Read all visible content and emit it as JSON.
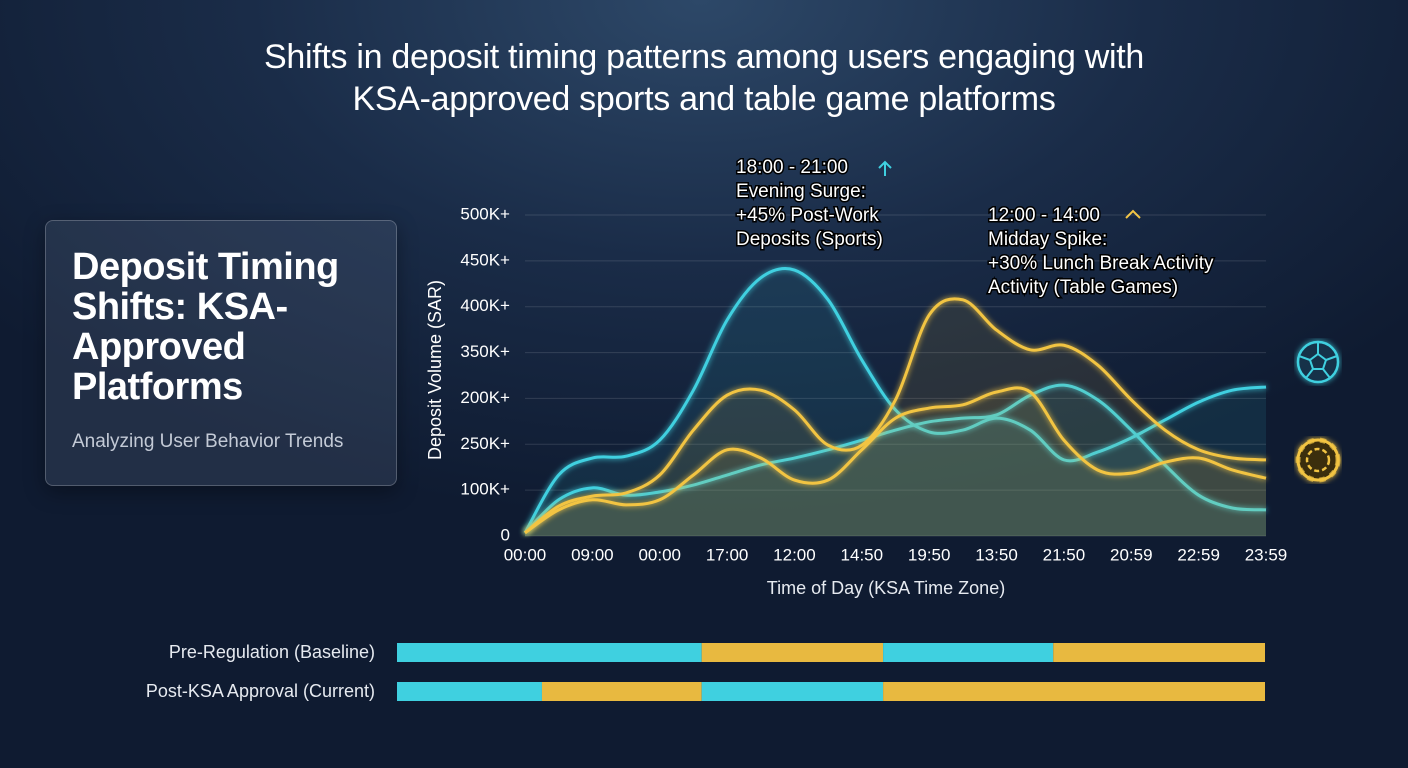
{
  "chart_data": {
    "type": "line",
    "title": "Shifts in deposit timing patterns among users engaging with KSA-approved sports and table game platforms",
    "x_label": "Time of Day (KSA Time Zone)",
    "y_label": "Deposit Volume (SAR)",
    "categories": [
      "00:00",
      null,
      "09:00",
      null,
      "00:00",
      null,
      "17:00",
      null,
      "12:00",
      null,
      "14:50",
      null,
      "19:50",
      null,
      "13:50",
      null,
      "21:50",
      null,
      "20:59",
      null,
      "22:59",
      null,
      "23:59"
    ],
    "ylim": [
      0,
      7
    ],
    "yticks": [
      {
        "value": 0,
        "label": "0"
      },
      {
        "value": 1,
        "label": "100K+"
      },
      {
        "value": 2,
        "label": "250K+"
      },
      {
        "value": 3,
        "label": "200K+"
      },
      {
        "value": 4,
        "label": "350K+"
      },
      {
        "value": 5,
        "label": "400K+"
      },
      {
        "value": 6,
        "label": "450K+"
      },
      {
        "value": 7,
        "label": "500K+"
      }
    ],
    "grid": true,
    "series": [
      {
        "color": "#3fd0e0",
        "values": [
          0.07,
          1.33,
          1.7,
          1.74,
          2.09,
          3.18,
          4.71,
          5.63,
          5.8,
          5.15,
          3.84,
          2.75,
          2.27,
          2.31,
          2.57,
          2.31,
          1.66,
          1.83,
          2.14,
          2.53,
          2.92,
          3.18,
          3.25
        ]
      },
      {
        "color": "#3fd0e0",
        "values": [
          0.07,
          0.79,
          1.05,
          0.89,
          0.96,
          1.11,
          1.33,
          1.55,
          1.7,
          1.88,
          2.09,
          2.31,
          2.49,
          2.57,
          2.64,
          3.07,
          3.29,
          2.97,
          2.31,
          1.55,
          0.89,
          0.61,
          0.57
        ]
      },
      {
        "color": "#f2c443",
        "values": [
          0.07,
          0.65,
          0.87,
          0.94,
          1.33,
          2.31,
          3.07,
          3.18,
          2.75,
          1.98,
          1.98,
          2.97,
          4.82,
          5.15,
          4.49,
          4.06,
          4.16,
          3.73,
          2.97,
          2.31,
          1.88,
          1.7,
          1.66
        ]
      },
      {
        "color": "#f2c443",
        "values": [
          0.07,
          0.57,
          0.79,
          0.68,
          0.79,
          1.33,
          1.88,
          1.7,
          1.22,
          1.22,
          1.88,
          2.57,
          2.79,
          2.86,
          3.14,
          3.14,
          2.09,
          1.44,
          1.37,
          1.61,
          1.7,
          1.44,
          1.26
        ]
      }
    ],
    "annotations": [
      {
        "lines": [
          "18:00 - 21:00",
          "Evening Surge:",
          "+45% Post-Work",
          "Deposits (Sports)"
        ]
      },
      {
        "lines": [
          "12:00 - 14:00",
          "Midday Spike:",
          "+30% Lunch Break Activity",
          "Activity (Table Games)"
        ]
      }
    ]
  },
  "card": {
    "title": "Deposit Timing Shifts: KSA-Approved Platforms",
    "subtitle": "Analyzing User Behavior Trends"
  },
  "timeline": {
    "rows": [
      {
        "label": "Pre-Regulation (Baseline)",
        "segments": [
          {
            "color": "#3fd0e0",
            "value": 35.1
          },
          {
            "color": "#e8b940",
            "value": 20.9
          },
          {
            "color": "#3fd0e0",
            "value": 19.6
          },
          {
            "color": "#e8b940",
            "value": 24.4
          }
        ]
      },
      {
        "label": "Post-KSA Approval (Current)",
        "segments": [
          {
            "color": "#3fd0e0",
            "value": 16.7
          },
          {
            "color": "#e8b940",
            "value": 18.4
          },
          {
            "color": "#3fd0e0",
            "value": 20.9
          },
          {
            "color": "#e8b940",
            "value": 44.0
          }
        ]
      }
    ]
  }
}
